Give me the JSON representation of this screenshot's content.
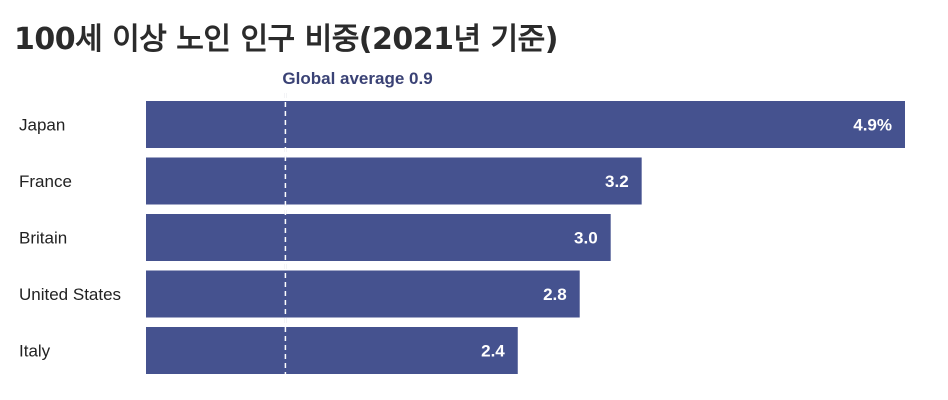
{
  "chart_data": {
    "type": "bar",
    "orientation": "horizontal",
    "title": "100세 이상 노인 인구 비중(2021년 기준)",
    "categories": [
      "Japan",
      "France",
      "Britain",
      "United States",
      "Italy"
    ],
    "values": [
      4.9,
      3.2,
      3.0,
      2.8,
      2.4
    ],
    "value_labels": [
      "4.9%",
      "3.2",
      "3.0",
      "2.8",
      "2.4"
    ],
    "xlim": [
      0,
      4.9
    ],
    "grid": false,
    "reference_line": {
      "value": 0.9,
      "label": "Global average 0.9",
      "style": "dashed"
    },
    "colors": {
      "bar": "#45528f",
      "reference_line": "#ffffff",
      "reference_label": "#3a4275",
      "value_label": "#ffffff"
    }
  }
}
